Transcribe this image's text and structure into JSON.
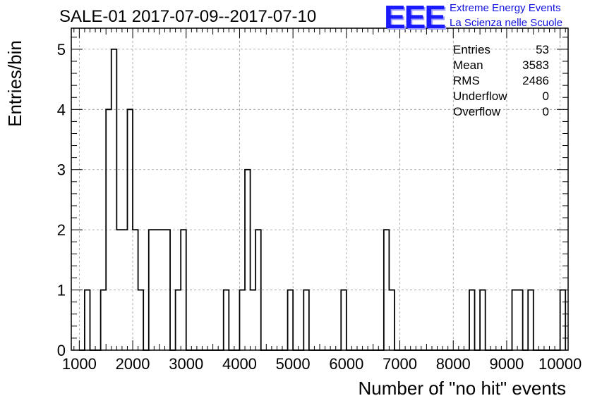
{
  "title": "SALE-01 2017-07-09--2017-07-10",
  "logo": {
    "mark": "EEE",
    "line1": "Extreme Energy Events",
    "line2": "La Scienza nelle Scuole"
  },
  "stats": [
    {
      "label": "Entries",
      "value": "53"
    },
    {
      "label": "Mean",
      "value": "3583"
    },
    {
      "label": "RMS",
      "value": "2486"
    },
    {
      "label": "Underflow",
      "value": "0"
    },
    {
      "label": "Overflow",
      "value": "0"
    }
  ],
  "chart_data": {
    "type": "histogram",
    "title": "SALE-01 2017-07-09--2017-07-10",
    "xlabel": "Number of \"no hit\" events",
    "ylabel": "Entries/bin",
    "xlim": [
      850,
      10150
    ],
    "ylim": [
      0,
      5.35
    ],
    "grid": true,
    "x_ticks": [
      1000,
      2000,
      3000,
      4000,
      5000,
      6000,
      7000,
      8000,
      9000,
      10000
    ],
    "y_ticks": [
      0,
      1,
      2,
      3,
      4,
      5
    ],
    "bin_width": 100,
    "bin_start": 1000,
    "counts": [
      0,
      1,
      0,
      0,
      1,
      4,
      5,
      2,
      2,
      4,
      2,
      1,
      0,
      2,
      2,
      2,
      2,
      0,
      1,
      2,
      0,
      0,
      0,
      0,
      0,
      0,
      0,
      1,
      0,
      0,
      1,
      3,
      1,
      2,
      0,
      0,
      0,
      0,
      0,
      1,
      0,
      0,
      1,
      0,
      0,
      0,
      0,
      0,
      0,
      1,
      0,
      0,
      0,
      0,
      0,
      0,
      0,
      2,
      1,
      0,
      0,
      0,
      0,
      0,
      0,
      0,
      0,
      0,
      0,
      0,
      0,
      0,
      0,
      1,
      0,
      1,
      0,
      0,
      0,
      0,
      0,
      1,
      1,
      0,
      1,
      0,
      0,
      0,
      0,
      0,
      1
    ]
  }
}
